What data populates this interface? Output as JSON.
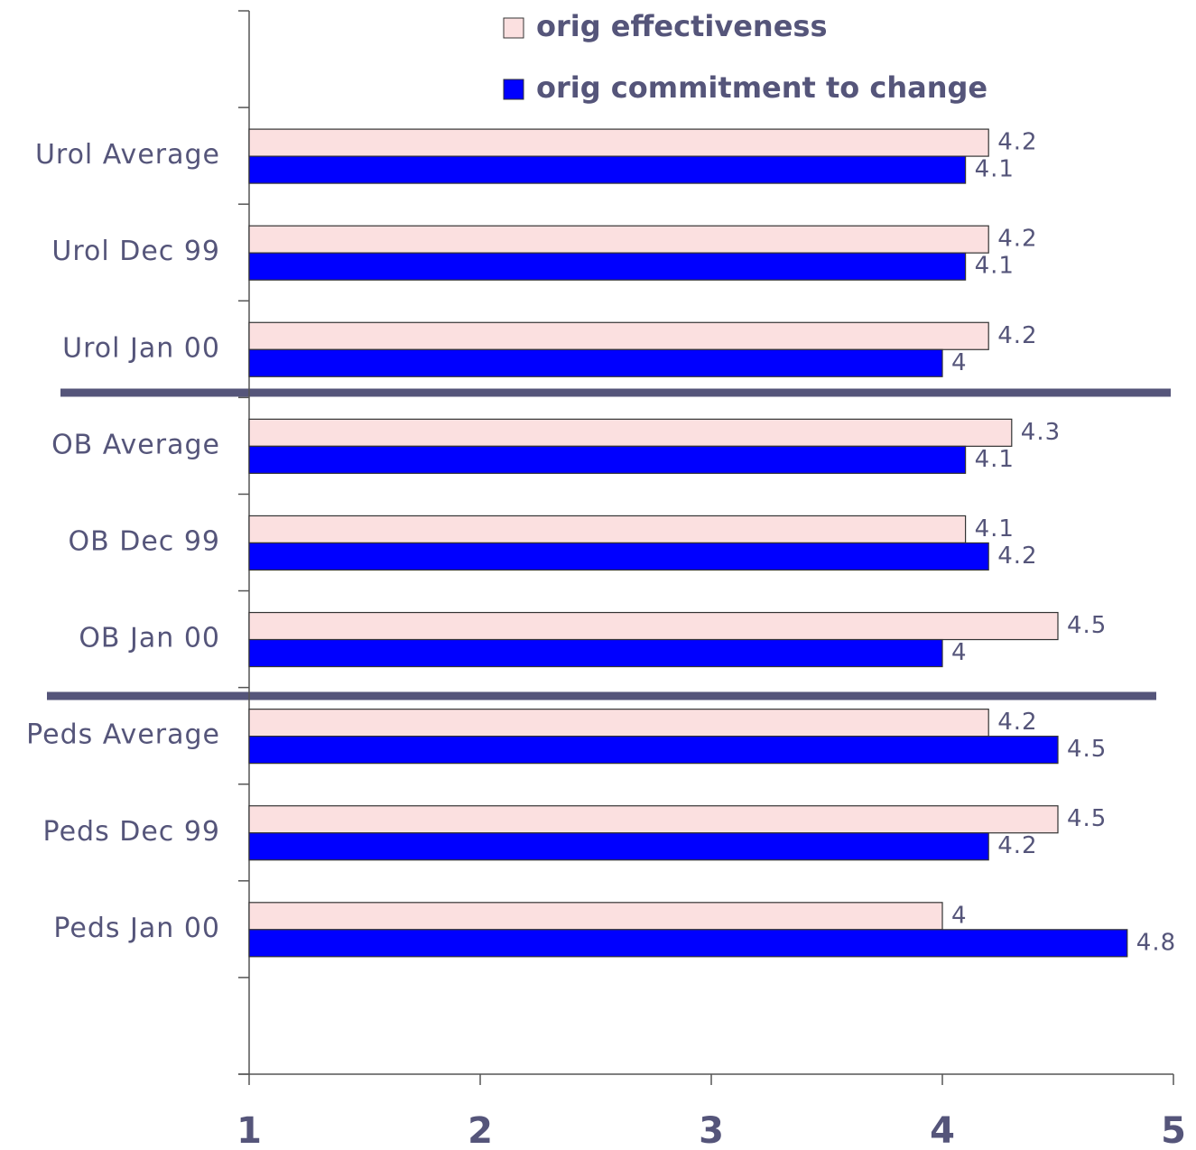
{
  "chart_data": {
    "type": "barh",
    "categories": [
      "Urol Average",
      "Urol Dec 99",
      "Urol Jan 00",
      "OB Average",
      "OB Dec 99",
      "OB Jan 00",
      "Peds Average",
      "Peds Dec 99",
      "Peds Jan 00"
    ],
    "series": [
      {
        "name": "orig effectiveness",
        "color": "#fbe0e0",
        "values": [
          4.2,
          4.2,
          4.2,
          4.3,
          4.1,
          4.5,
          4.2,
          4.5,
          4
        ]
      },
      {
        "name": "orig commitment to change",
        "color": "#0000ff",
        "values": [
          4.1,
          4.1,
          4,
          4.1,
          4.2,
          4,
          4.5,
          4.2,
          4.8
        ]
      }
    ],
    "xlim": [
      1,
      5
    ],
    "xticks": [
      1,
      2,
      3,
      4,
      5
    ],
    "legend": "top"
  }
}
